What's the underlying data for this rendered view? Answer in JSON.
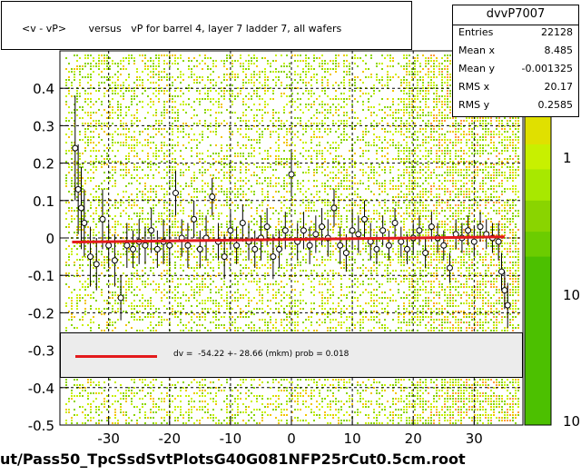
{
  "chart_data": {
    "type": "scatter",
    "title": "<v - vP>       versus   vP for barrel 4, layer 7 ladder 7, all wafers",
    "xlim": [
      -38,
      38
    ],
    "ylim": [
      -0.5,
      0.5
    ],
    "x_ticks": [
      -30,
      -20,
      -10,
      0,
      10,
      20,
      30
    ],
    "y_ticks": [
      -0.5,
      -0.4,
      -0.3,
      -0.2,
      -0.1,
      0,
      0.1,
      0.2,
      0.3,
      0.4
    ],
    "y_tick_labels": [
      "-0.5",
      "-0.4",
      "-0.3",
      "-0.2",
      "-0.1",
      "0",
      "0.1",
      "0.2",
      "0.3",
      "0.4"
    ],
    "grid": true,
    "colorbar_labels": [
      "1",
      "10",
      "10"
    ],
    "profile_points": [
      {
        "x": -35.5,
        "y": 0.24,
        "e": 0.14
      },
      {
        "x": -35.0,
        "y": 0.13,
        "e": 0.12
      },
      {
        "x": -34.5,
        "y": 0.08,
        "e": 0.11
      },
      {
        "x": -34.0,
        "y": 0.04,
        "e": 0.09
      },
      {
        "x": -33.0,
        "y": -0.05,
        "e": 0.08
      },
      {
        "x": -32.0,
        "y": -0.07,
        "e": 0.07
      },
      {
        "x": -31.0,
        "y": 0.05,
        "e": 0.08
      },
      {
        "x": -30.0,
        "y": -0.02,
        "e": 0.06
      },
      {
        "x": -29.0,
        "y": -0.06,
        "e": 0.07
      },
      {
        "x": -28.0,
        "y": -0.16,
        "e": 0.06
      },
      {
        "x": -27.0,
        "y": -0.02,
        "e": 0.06
      },
      {
        "x": -26.0,
        "y": -0.03,
        "e": 0.05
      },
      {
        "x": -25.0,
        "y": -0.01,
        "e": 0.06
      },
      {
        "x": -24.0,
        "y": -0.02,
        "e": 0.05
      },
      {
        "x": -23.0,
        "y": 0.02,
        "e": 0.06
      },
      {
        "x": -22.0,
        "y": -0.03,
        "e": 0.05
      },
      {
        "x": -21.0,
        "y": -0.01,
        "e": 0.06
      },
      {
        "x": -20.0,
        "y": -0.02,
        "e": 0.05
      },
      {
        "x": -19.0,
        "y": 0.12,
        "e": 0.06
      },
      {
        "x": -18.0,
        "y": 0.0,
        "e": 0.05
      },
      {
        "x": -17.0,
        "y": -0.02,
        "e": 0.06
      },
      {
        "x": -16.0,
        "y": 0.05,
        "e": 0.05
      },
      {
        "x": -15.0,
        "y": -0.03,
        "e": 0.05
      },
      {
        "x": -14.0,
        "y": 0.0,
        "e": 0.06
      },
      {
        "x": -13.0,
        "y": 0.11,
        "e": 0.05
      },
      {
        "x": -12.0,
        "y": -0.01,
        "e": 0.05
      },
      {
        "x": -11.0,
        "y": -0.05,
        "e": 0.06
      },
      {
        "x": -10.0,
        "y": 0.02,
        "e": 0.05
      },
      {
        "x": -9.0,
        "y": -0.02,
        "e": 0.05
      },
      {
        "x": -8.0,
        "y": 0.04,
        "e": 0.05
      },
      {
        "x": -7.0,
        "y": -0.01,
        "e": 0.05
      },
      {
        "x": -6.0,
        "y": -0.03,
        "e": 0.05
      },
      {
        "x": -5.0,
        "y": 0.0,
        "e": 0.06
      },
      {
        "x": -4.0,
        "y": 0.03,
        "e": 0.05
      },
      {
        "x": -3.0,
        "y": -0.05,
        "e": 0.06
      },
      {
        "x": -2.0,
        "y": -0.03,
        "e": 0.05
      },
      {
        "x": -1.0,
        "y": 0.02,
        "e": 0.05
      },
      {
        "x": 0.0,
        "y": 0.17,
        "e": 0.06
      },
      {
        "x": 1.0,
        "y": -0.01,
        "e": 0.05
      },
      {
        "x": 2.0,
        "y": 0.02,
        "e": 0.05
      },
      {
        "x": 3.0,
        "y": -0.02,
        "e": 0.05
      },
      {
        "x": 4.0,
        "y": 0.01,
        "e": 0.05
      },
      {
        "x": 5.0,
        "y": 0.03,
        "e": 0.05
      },
      {
        "x": 6.0,
        "y": 0.0,
        "e": 0.05
      },
      {
        "x": 7.0,
        "y": 0.08,
        "e": 0.05
      },
      {
        "x": 8.0,
        "y": -0.02,
        "e": 0.05
      },
      {
        "x": 9.0,
        "y": -0.04,
        "e": 0.05
      },
      {
        "x": 10.0,
        "y": 0.02,
        "e": 0.05
      },
      {
        "x": 11.0,
        "y": 0.01,
        "e": 0.05
      },
      {
        "x": 12.0,
        "y": 0.05,
        "e": 0.05
      },
      {
        "x": 13.0,
        "y": -0.01,
        "e": 0.05
      },
      {
        "x": 14.0,
        "y": -0.03,
        "e": 0.04
      },
      {
        "x": 15.0,
        "y": 0.02,
        "e": 0.04
      },
      {
        "x": 16.0,
        "y": -0.02,
        "e": 0.04
      },
      {
        "x": 17.0,
        "y": 0.04,
        "e": 0.04
      },
      {
        "x": 18.0,
        "y": -0.01,
        "e": 0.04
      },
      {
        "x": 19.0,
        "y": -0.03,
        "e": 0.04
      },
      {
        "x": 20.0,
        "y": 0.0,
        "e": 0.04
      },
      {
        "x": 21.0,
        "y": 0.02,
        "e": 0.04
      },
      {
        "x": 22.0,
        "y": -0.04,
        "e": 0.04
      },
      {
        "x": 23.0,
        "y": 0.03,
        "e": 0.04
      },
      {
        "x": 24.0,
        "y": 0.0,
        "e": 0.04
      },
      {
        "x": 25.0,
        "y": -0.02,
        "e": 0.04
      },
      {
        "x": 26.0,
        "y": -0.08,
        "e": 0.04
      },
      {
        "x": 27.0,
        "y": 0.01,
        "e": 0.04
      },
      {
        "x": 28.0,
        "y": 0.0,
        "e": 0.04
      },
      {
        "x": 29.0,
        "y": 0.02,
        "e": 0.04
      },
      {
        "x": 30.0,
        "y": -0.01,
        "e": 0.04
      },
      {
        "x": 31.0,
        "y": 0.03,
        "e": 0.04
      },
      {
        "x": 32.0,
        "y": 0.01,
        "e": 0.04
      },
      {
        "x": 33.0,
        "y": 0.0,
        "e": 0.04
      },
      {
        "x": 34.0,
        "y": -0.01,
        "e": 0.05
      },
      {
        "x": 34.5,
        "y": -0.09,
        "e": 0.05
      },
      {
        "x": 35.0,
        "y": -0.14,
        "e": 0.05
      },
      {
        "x": 35.5,
        "y": -0.18,
        "e": 0.06
      }
    ],
    "fit_line": {
      "x": [
        -36,
        35
      ],
      "y": [
        -0.011,
        0.003
      ],
      "color": "#e31a1c"
    },
    "colors": {
      "grid": "#000000",
      "fit": "#e31a1c",
      "density_light": "#c8f000",
      "density_mid": "#8ad400",
      "density_high": "#f2c400",
      "density_peak": "#ff9a3c"
    }
  },
  "title_text": "<v - vP>       versus   vP for barrel 4, layer 7 ladder 7, all wafers",
  "stats": {
    "name": "dvvP7007",
    "rows": [
      {
        "key": "Entries",
        "value": "22128"
      },
      {
        "key": "Mean x",
        "value": "8.485"
      },
      {
        "key": "Mean y",
        "value": "-0.001325"
      },
      {
        "key": "RMS x",
        "value": "20.17"
      },
      {
        "key": "RMS y",
        "value": "0.2585"
      }
    ]
  },
  "fit_label": "dv =  -54.22 +- 28.66 (mkm) prob = 0.018",
  "footer": "ut/Pass50_TpcSsdSvtPlotsG40G081NFP25rCut0.5cm.root"
}
